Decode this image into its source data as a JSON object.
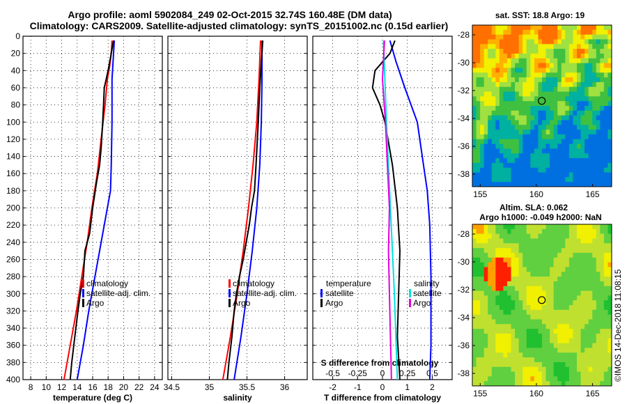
{
  "title": {
    "line1": "Argo profile: aoml 5902084_249 02-Oct-2015 32.74S 160.48E (DM data)",
    "line2": "Climatology: CARS2009. Satellite-adjusted climatology: synTS_20151002.nc (0.15d earlier)"
  },
  "side_label": "©IMOS 14-Dec-2018 11:08:15",
  "colors": {
    "climatology": "#ff0000",
    "satellite": "#0000ff",
    "argo": "#000000",
    "salinity_sat": "#00e0e0",
    "salinity_argo": "#e000e0",
    "grid": "#000000"
  },
  "chart_data": [
    {
      "type": "line",
      "name": "temperature",
      "xlabel": "temperature (deg C)",
      "ylabel": "",
      "xlim": [
        7,
        25
      ],
      "ylim": [
        400,
        0
      ],
      "xticks": [
        "8",
        "10",
        "12",
        "14",
        "16",
        "18",
        "20",
        "22",
        "24"
      ],
      "xtick_values": [
        8,
        10,
        12,
        14,
        16,
        18,
        20,
        22,
        24
      ],
      "yticks": [
        "0",
        "20",
        "40",
        "60",
        "80",
        "100",
        "120",
        "140",
        "160",
        "180",
        "200",
        "220",
        "240",
        "260",
        "280",
        "300",
        "320",
        "340",
        "360",
        "380",
        "400"
      ],
      "grid": true,
      "legend": {
        "placement": "bottom-right",
        "entries": [
          "climatology",
          "satellite-adj. clim.",
          "Argo"
        ]
      },
      "series": [
        {
          "name": "climatology",
          "color": "#ff0000",
          "depth": [
            5,
            20,
            35,
            50,
            80,
            120,
            160,
            200,
            240,
            280,
            320,
            360,
            400
          ],
          "values": [
            18.5,
            18.4,
            18.2,
            17.9,
            17.6,
            17.1,
            16.6,
            15.9,
            15.3,
            14.6,
            13.9,
            13.1,
            12.3
          ]
        },
        {
          "name": "satellite-adj. clim.",
          "color": "#0000ff",
          "depth": [
            5,
            20,
            35,
            50,
            100,
            150,
            180,
            200,
            240,
            280,
            320,
            360,
            400
          ],
          "values": [
            18.8,
            18.7,
            18.6,
            18.5,
            18.5,
            18.4,
            18.3,
            17.9,
            17.1,
            16.3,
            15.5,
            14.8,
            14.0
          ]
        },
        {
          "name": "Argo",
          "color": "#000000",
          "depth": [
            5,
            15,
            25,
            40,
            60,
            80,
            100,
            130,
            150,
            170,
            200,
            230,
            250,
            280,
            300,
            320,
            350,
            380,
            400
          ],
          "values": [
            18.7,
            18.5,
            18.3,
            18.0,
            17.5,
            17.4,
            17.3,
            17.1,
            16.9,
            16.5,
            16.0,
            15.6,
            15.0,
            14.8,
            14.4,
            14.1,
            13.7,
            13.3,
            13.1
          ]
        }
      ]
    },
    {
      "type": "line",
      "name": "salinity",
      "xlabel": "salinity",
      "ylabel": "",
      "xlim": [
        34.45,
        36.3
      ],
      "ylim": [
        400,
        0
      ],
      "xticks": [
        "34.5",
        "35",
        "35.5",
        "36"
      ],
      "xtick_values": [
        34.5,
        35,
        35.5,
        36
      ],
      "grid": true,
      "legend": {
        "placement": "bottom-right",
        "entries": [
          "climatology",
          "satellite-adj. clim.",
          "Argo"
        ]
      },
      "series": [
        {
          "name": "climatology",
          "color": "#ff0000",
          "depth": [
            5,
            50,
            100,
            150,
            200,
            250,
            300,
            350,
            400
          ],
          "values": [
            35.68,
            35.66,
            35.63,
            35.58,
            35.52,
            35.45,
            35.37,
            35.28,
            35.18
          ]
        },
        {
          "name": "satellite-adj. clim.",
          "color": "#0000ff",
          "depth": [
            5,
            50,
            100,
            150,
            200,
            250,
            300,
            350,
            400
          ],
          "values": [
            35.7,
            35.7,
            35.69,
            35.67,
            35.63,
            35.57,
            35.5,
            35.42,
            35.33
          ]
        },
        {
          "name": "Argo",
          "color": "#000000",
          "depth": [
            5,
            30,
            60,
            100,
            150,
            180,
            200,
            220,
            240,
            260,
            280,
            300,
            320,
            350,
            380,
            400
          ],
          "values": [
            35.71,
            35.69,
            35.67,
            35.65,
            35.62,
            35.6,
            35.56,
            35.53,
            35.49,
            35.45,
            35.4,
            35.36,
            35.33,
            35.3,
            35.26,
            35.24
          ]
        }
      ]
    },
    {
      "type": "line",
      "name": "difference",
      "xlabel": "T difference from climatology",
      "xlabel_top": "S difference from climatology",
      "xlim": [
        -2.8,
        2.8
      ],
      "ylim": [
        400,
        0
      ],
      "xticks": [
        "-2",
        "-1",
        "0",
        "1",
        "2"
      ],
      "xtick_values": [
        -2,
        -1,
        0,
        1,
        2
      ],
      "xticks_top": [
        "-0.5",
        "-0.25",
        "0",
        "0.25",
        "0.5"
      ],
      "xtick_top_values": [
        -0.5,
        -0.25,
        0,
        0.25,
        0.5
      ],
      "grid": true,
      "legend": {
        "placement": "bottom",
        "left_title": "temperature",
        "right_title": "salinity",
        "left_entries": [
          "satellite",
          "Argo"
        ],
        "right_entries": [
          "satellite",
          "Argo"
        ]
      },
      "series": [
        {
          "name": "temperature satellite",
          "color": "#0000ff",
          "depth": [
            5,
            30,
            60,
            100,
            150,
            180,
            220,
            280,
            320,
            360,
            400
          ],
          "values": [
            0.3,
            0.55,
            0.9,
            1.4,
            1.65,
            1.8,
            1.9,
            1.95,
            1.95,
            1.95,
            1.9
          ]
        },
        {
          "name": "temperature Argo",
          "color": "#000000",
          "depth": [
            5,
            20,
            40,
            60,
            80,
            100,
            150,
            200,
            250,
            300,
            350,
            400
          ],
          "values": [
            0.5,
            0.3,
            -0.3,
            -0.4,
            -0.1,
            0.1,
            0.4,
            0.6,
            0.7,
            0.65,
            0.6,
            0.7
          ]
        },
        {
          "name": "salinity satellite",
          "color": "#00e0e0",
          "depth": [
            5,
            100,
            200,
            300,
            400
          ],
          "values": [
            0.01,
            0.04,
            0.08,
            0.12,
            0.15
          ]
        },
        {
          "name": "salinity Argo",
          "color": "#e000e0",
          "depth": [
            5,
            50,
            100,
            150,
            200,
            250,
            300,
            350,
            400
          ],
          "values": [
            0.02,
            0.0,
            0.03,
            0.05,
            0.07,
            0.06,
            0.07,
            0.08,
            0.09
          ]
        }
      ]
    }
  ],
  "maps": {
    "sst": {
      "title": "sat. SST: 18.8 Argo: 19",
      "xticks": [
        "155",
        "160",
        "165"
      ],
      "yticks": [
        "-28",
        "-30",
        "-32",
        "-34",
        "-36",
        "-38"
      ],
      "profile_lon": 160.48,
      "profile_lat": -32.74
    },
    "sla": {
      "title1": "Altim. SLA: 0.062",
      "title2": "Argo h1000: -0.049 h2000: NaN",
      "xticks": [
        "155",
        "160",
        "165"
      ],
      "yticks": [
        "-28",
        "-30",
        "-32",
        "-34",
        "-36",
        "-38"
      ],
      "profile_lon": 160.48,
      "profile_lat": -32.74
    }
  }
}
